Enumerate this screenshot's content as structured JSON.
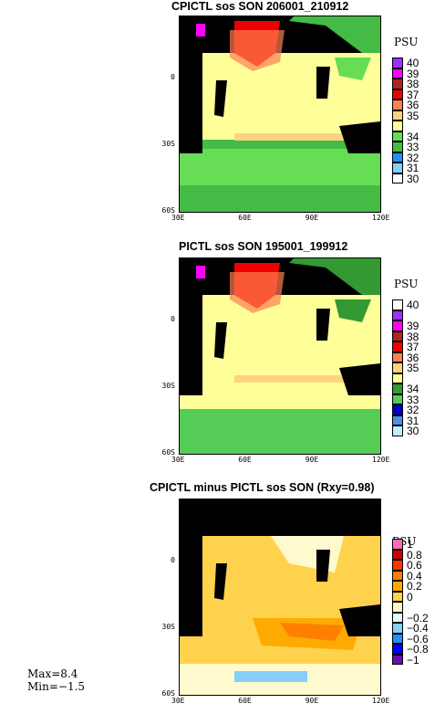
{
  "panels": [
    {
      "title": "CPICTL sos SON 206001_210912",
      "unit": "PSU",
      "yticks": [
        "0",
        "30S",
        "60S"
      ],
      "xticks": [
        "30E",
        "60E",
        "90E",
        "120E"
      ],
      "legend": [
        {
          "label": "40",
          "color": "#9b30ff"
        },
        {
          "label": "39",
          "color": "#ff00ff"
        },
        {
          "label": "38",
          "color": "#b22222"
        },
        {
          "label": "37",
          "color": "#ee0000"
        },
        {
          "label": "36",
          "color": "#ff7f50"
        },
        {
          "label": "35",
          "color": "#ffd280"
        },
        {
          "label": "",
          "color": "#ffff99"
        },
        {
          "label": "34",
          "color": "#66dd55"
        },
        {
          "label": "33",
          "color": "#44bb44"
        },
        {
          "label": "32",
          "color": "#1e90ff"
        },
        {
          "label": "31",
          "color": "#87cefa"
        },
        {
          "label": "30",
          "color": "#ffffff"
        }
      ]
    },
    {
      "title": "PICTL sos SON 195001_199912",
      "unit": "PSU",
      "yticks": [
        "0",
        "30S",
        "60S"
      ],
      "xticks": [
        "30E",
        "60E",
        "90E",
        "120E"
      ],
      "legend": [
        {
          "label": "40",
          "color": "#fffaf0"
        },
        {
          "label": "",
          "color": "#9b30ff"
        },
        {
          "label": "39",
          "color": "#ff00ff"
        },
        {
          "label": "38",
          "color": "#b22222"
        },
        {
          "label": "37",
          "color": "#ee0000"
        },
        {
          "label": "36",
          "color": "#ff7f50"
        },
        {
          "label": "35",
          "color": "#ffd280"
        },
        {
          "label": "",
          "color": "#ffff99"
        },
        {
          "label": "34",
          "color": "#339933"
        },
        {
          "label": "33",
          "color": "#55cc55"
        },
        {
          "label": "32",
          "color": "#0000cc"
        },
        {
          "label": "31",
          "color": "#4a90e2"
        },
        {
          "label": "30",
          "color": "#bfefff"
        }
      ]
    },
    {
      "title": "CPICTL minus PICTL sos SON (Rxy=0.98)",
      "unit": "PSU",
      "yticks": [
        "0",
        "30S",
        "60S"
      ],
      "xticks": [
        "30E",
        "60E",
        "90E",
        "120E"
      ],
      "legend": [
        {
          "label": "1",
          "color": "#ff69b4"
        },
        {
          "label": "0.8",
          "color": "#cc0000"
        },
        {
          "label": "0.6",
          "color": "#ff3300"
        },
        {
          "label": "0.4",
          "color": "#ff7f00"
        },
        {
          "label": "0.2",
          "color": "#ffaa00"
        },
        {
          "label": "0",
          "color": "#ffd24d"
        },
        {
          "label": "",
          "color": "#fffacd"
        },
        {
          "label": "−0.2",
          "color": "#e0ffff"
        },
        {
          "label": "−0.4",
          "color": "#87cefa"
        },
        {
          "label": "−0.6",
          "color": "#1e90ff"
        },
        {
          "label": "−0.8",
          "color": "#0000ff"
        },
        {
          "label": "−1",
          "color": "#6a0dad"
        }
      ]
    }
  ],
  "stats": {
    "max": "Max=8.4",
    "min": "Min=−1.5"
  }
}
